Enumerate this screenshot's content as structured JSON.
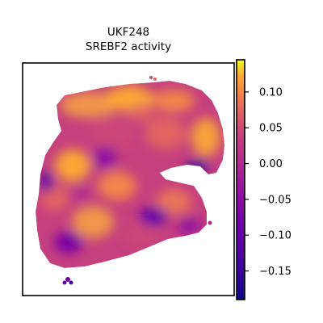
{
  "chart_data": {
    "type": "heatmap",
    "title_lines": [
      "UKF248",
      "SREBF2 activity"
    ],
    "xlabel": "",
    "ylabel": "",
    "grid": false,
    "colormap": "plasma",
    "colorbar": {
      "vmin": -0.19,
      "vmax": 0.145,
      "ticks": [
        0.1,
        0.05,
        0.0,
        -0.05,
        -0.1,
        -0.15
      ],
      "tick_labels": [
        "0.10",
        "0.05",
        "0.00",
        "−0.05",
        "−0.10",
        "−0.15"
      ]
    },
    "description_values": {
      "high_regions": [
        "upper tissue band",
        "right lobe",
        "left-center"
      ],
      "low_regions": [
        "notch boundary",
        "lower-center cluster",
        "left edge"
      ]
    }
  }
}
